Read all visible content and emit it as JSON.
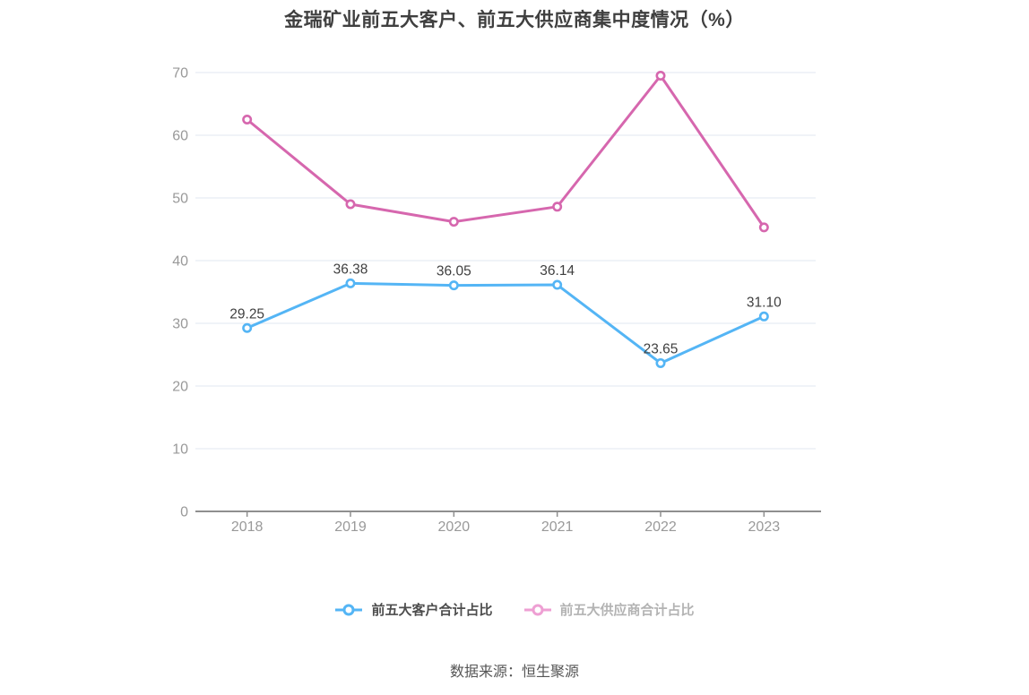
{
  "title": "金瑞矿业前五大客户、前五大供应商集中度情况（%）",
  "source": "数据来源：恒生聚源",
  "legend": {
    "items": [
      {
        "label": "前五大客户合计占比",
        "icon_color": "#54b5f5",
        "text_color": "#4d4d4d"
      },
      {
        "label": "前五大供应商合计占比",
        "icon_color": "#ee9fd3",
        "text_color": "#b3b3b3"
      }
    ]
  },
  "chart_data": {
    "type": "line",
    "title": "金瑞矿业前五大客户、前五大供应商集中度情况（%）",
    "categories": [
      "2018",
      "2019",
      "2020",
      "2021",
      "2022",
      "2023"
    ],
    "series": [
      {
        "name": "前五大客户合计占比",
        "values": [
          29.25,
          36.38,
          36.05,
          36.14,
          23.65,
          31.1
        ],
        "data_labels": [
          "29.25",
          "36.38",
          "36.05",
          "36.14",
          "23.65",
          "31.10"
        ],
        "labels_visible": true,
        "color": "#54b5f5",
        "marker": "hollow-circle"
      },
      {
        "name": "前五大供应商合计占比",
        "values": [
          62.5,
          49.0,
          46.2,
          48.6,
          69.5,
          45.3
        ],
        "labels_visible": false,
        "color": "#d667ae",
        "marker": "hollow-circle"
      }
    ],
    "xlabel": "",
    "ylabel": "",
    "ylim": [
      0,
      70
    ],
    "yticks": [
      0,
      10,
      20,
      30,
      40,
      50,
      60,
      70
    ],
    "grid": true,
    "legend_position": "bottom",
    "colors": {
      "grid_line": "#e8ecf4",
      "axis_line": "#8f8f8f",
      "axis_label": "#999999",
      "data_label": "#3f3f3f",
      "background": "#ffffff"
    }
  }
}
